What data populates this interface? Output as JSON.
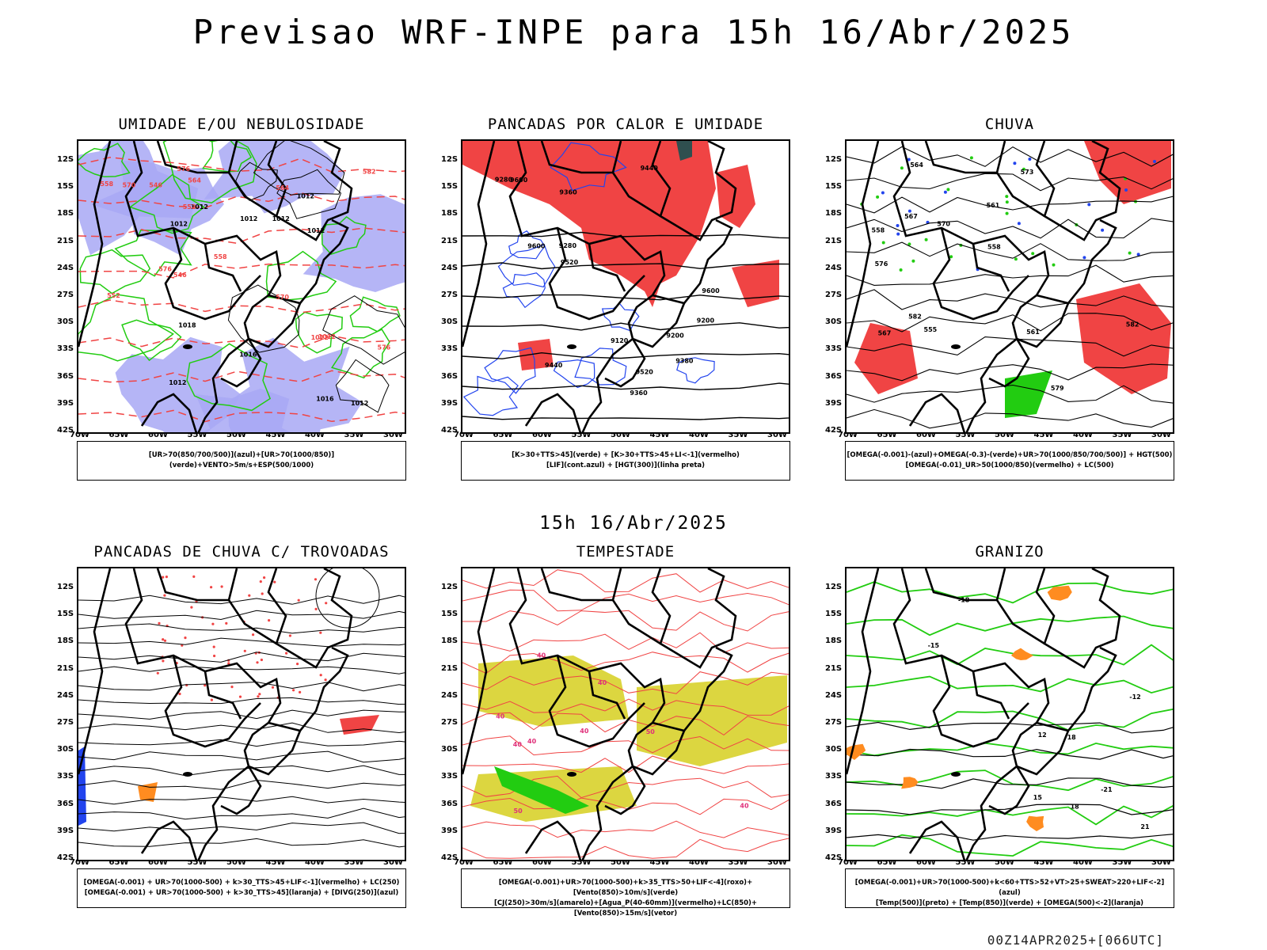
{
  "title": "Previsao WRF-INPE  para 15h 16/Abr/2025",
  "middle_title": "15h 16/Abr/2025",
  "footer": "00Z14APR2025+[066UTC]",
  "lat_labels": [
    "12S",
    "15S",
    "18S",
    "21S",
    "24S",
    "27S",
    "30S",
    "33S",
    "36S",
    "39S",
    "42S"
  ],
  "lon_labels": [
    "70W",
    "65W",
    "60W",
    "55W",
    "50W",
    "45W",
    "40W",
    "35W",
    "30W"
  ],
  "colors": {
    "red": "#f04444",
    "blue": "#2244ee",
    "lightblue": "#a8a8f4",
    "green": "#22cc11",
    "yellow": "#dcd640",
    "darkgreen": "#2f4f4f",
    "orange": "#ff8c20"
  },
  "panels": [
    {
      "title": "UMIDADE E/OU NEBULOSIDADE",
      "legend": [
        "[UR>70(850/700/500)](azul)+[UR>70(1000/850)](verde)+VENTO>5m/s+ESP(500/1000)"
      ],
      "contour_labels": [
        "1012",
        "1012",
        "1012",
        "1012",
        "1012",
        "1012",
        "1016",
        "1012",
        "1018",
        "1016",
        "1012",
        "1012",
        "1012",
        "570",
        "576",
        "582",
        "558",
        "564",
        "552",
        "546",
        "570",
        "576",
        "576",
        "564",
        "558",
        "552",
        "546"
      ]
    },
    {
      "title": "PANCADAS POR CALOR E UMIDADE",
      "legend": [
        "[K>30+TTS>45](verde) + [K>30+TTS>45+LI<-1](vermelho)",
        "[LIF](cont.azul) + [HGT(300)](linha preta)"
      ],
      "contour_labels": [
        "9600",
        "9600",
        "9600",
        "9520",
        "9520",
        "9440",
        "9440",
        "9360",
        "9360",
        "9280",
        "9280",
        "9200",
        "9200",
        "9120",
        "9380"
      ]
    },
    {
      "title": "CHUVA",
      "legend": [
        "[OMEGA(-0.001)-(azul)+OMEGA(-0.3)-(verde)+UR>70(1000/850/700/500)] + HGT(500)",
        "[OMEGA(-0.01)_UR>50(1000/850)(vermelho) + LC(500)"
      ],
      "contour_labels": [
        "582",
        "576",
        "582",
        "579",
        "573",
        "570",
        "567",
        "564",
        "561",
        "558",
        "555",
        "561",
        "567",
        "558"
      ]
    },
    {
      "title": "PANCADAS DE CHUVA C/ TROVOADAS",
      "legend": [
        "[OMEGA(-0.001) + UR>70(1000-500) + k>30_TTS>45+LIF<-1](vermelho) + LC(250)",
        "[OMEGA(-0.001) + UR>70(1000-500) + k>30_TTS>45](laranja) + [DIVG(250)](azul)"
      ],
      "contour_labels": []
    },
    {
      "title": "TEMPESTADE",
      "legend": [
        "[OMEGA(-0.001)+UR>70(1000-500)+k>35_TTS>50+LIF<-4](roxo)+[Vento(850)>10m/s](verde)",
        "[CJ(250)>30m/s](amarelo)+[Agua_P(40-60mm)](vermelho)+LC(850)+[Vento(850)>15m/s](vetor)"
      ],
      "contour_labels": [
        "40",
        "40",
        "50",
        "40",
        "40",
        "50",
        "40",
        "40",
        "40"
      ]
    },
    {
      "title": "GRANIZO",
      "legend": [
        "[OMEGA(-0.001)+UR>70(1000-500)+k<60+TTS>52+VT>25+SWEAT>220+LIF<-2](azul)",
        "[Temp(500)](preto) + [Temp(850)](verde) + [OMEGA(500)<-2](laranja)"
      ],
      "contour_labels": [
        "21",
        "12",
        "15",
        "18",
        "-21",
        "-18",
        "-15",
        "-12",
        "18"
      ]
    }
  ]
}
